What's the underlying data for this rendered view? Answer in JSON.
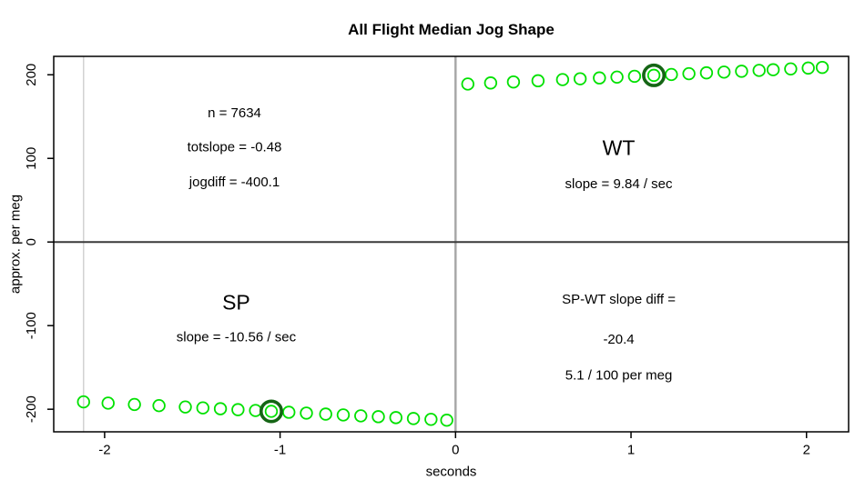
{
  "chart_data": {
    "type": "scatter",
    "title": "All Flight Median Jog Shape",
    "xlabel": "seconds",
    "ylabel": "approx. per meg",
    "xlim": [
      -2.29,
      2.24
    ],
    "ylim": [
      -227,
      222
    ],
    "x_ticks": [
      -2,
      -1,
      0,
      1,
      2
    ],
    "x_tick_labels": [
      "-2",
      "-1",
      "0",
      "1",
      "2"
    ],
    "y_ticks": [
      -200,
      -100,
      0,
      100,
      200
    ],
    "y_tick_labels": [
      "-200",
      "-100",
      "0",
      "100",
      "200"
    ],
    "grid": false,
    "legend": "none",
    "point_color": "#00e100",
    "highlight_color": "#156515",
    "reference_lines": [
      {
        "orientation": "vertical",
        "at": -2.12,
        "color": "#d2d2d2",
        "width": 1.5,
        "name": "data-start-line"
      },
      {
        "orientation": "vertical",
        "at": 0,
        "color": "#a8a8a8",
        "width": 2.5,
        "name": "zero-seconds-line"
      },
      {
        "orientation": "horizontal",
        "at": 0,
        "color": "#3a3a3a",
        "width": 2,
        "name": "zero-value-line"
      }
    ],
    "series": [
      {
        "name": "SP",
        "x": [
          -2.12,
          -1.98,
          -1.83,
          -1.69,
          -1.54,
          -1.44,
          -1.34,
          -1.24,
          -1.14,
          -1.05,
          -0.95,
          -0.85,
          -0.74,
          -0.64,
          -0.54,
          -0.44,
          -0.34,
          -0.24,
          -0.14,
          -0.05
        ],
        "y": [
          -191.2,
          -192.7,
          -194.3,
          -195.7,
          -197.3,
          -198.4,
          -199.4,
          -200.5,
          -201.5,
          -202.5,
          -203.6,
          -204.6,
          -205.8,
          -206.8,
          -207.9,
          -208.9,
          -210.0,
          -211.1,
          -212.1,
          -213.1
        ],
        "highlight_index": 9
      },
      {
        "name": "WT",
        "x": [
          0.07,
          0.2,
          0.33,
          0.47,
          0.61,
          0.71,
          0.82,
          0.92,
          1.02,
          1.13,
          1.23,
          1.33,
          1.43,
          1.53,
          1.63,
          1.73,
          1.81,
          1.91,
          2.01,
          2.09
        ],
        "y": [
          188.9,
          190.2,
          191.4,
          192.8,
          194.2,
          195.2,
          196.2,
          197.2,
          198.2,
          199.3,
          200.3,
          201.3,
          202.3,
          203.2,
          204.2,
          205.2,
          206.0,
          207.0,
          208.0,
          208.8
        ],
        "highlight_index": 9
      }
    ],
    "annotations": [
      {
        "text": "n = 7634",
        "x": -1.26,
        "y": 155,
        "size": 15
      },
      {
        "text": "totslope = -0.48",
        "x": -1.26,
        "y": 114,
        "size": 15
      },
      {
        "text": "jogdiff = -400.1",
        "x": -1.26,
        "y": 72,
        "size": 15
      },
      {
        "text": "WT",
        "x": 0.93,
        "y": 113,
        "size": 23
      },
      {
        "text": "slope = 9.84 / sec",
        "x": 0.93,
        "y": 70,
        "size": 15
      },
      {
        "text": "SP",
        "x": -1.25,
        "y": -72,
        "size": 23
      },
      {
        "text": "slope = -10.56 / sec",
        "x": -1.25,
        "y": -113,
        "size": 15
      },
      {
        "text": "SP-WT slope diff =",
        "x": 0.93,
        "y": -68,
        "size": 15
      },
      {
        "text": "-20.4",
        "x": 0.93,
        "y": -116,
        "size": 15
      },
      {
        "text": "5.1 / 100 per meg",
        "x": 0.93,
        "y": -159,
        "size": 15
      }
    ]
  }
}
